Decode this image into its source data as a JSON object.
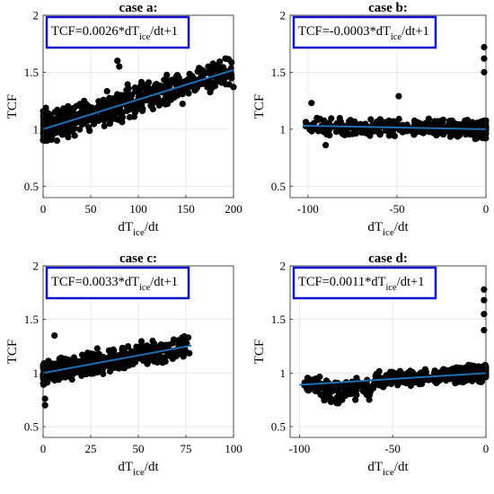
{
  "chart_data": [
    {
      "type": "scatter",
      "title": "case a:",
      "xlabel_main": "dT",
      "xlabel_sub": "ice",
      "xlabel_tail": "/dt",
      "ylabel": "TCF",
      "xlim": [
        0,
        200
      ],
      "ylim": [
        0.4,
        2.0
      ],
      "xticks": [
        "0",
        "50",
        "100",
        "150",
        "200"
      ],
      "yticks": [
        "0.5",
        "1",
        "1.5",
        "2"
      ],
      "grid": true,
      "fit_label": {
        "pre": "TCF=0.0026*dT",
        "sub": "ice",
        "post": "/dt+1"
      },
      "fit": {
        "x": [
          0,
          200
        ],
        "y": [
          1.0,
          1.52
        ]
      },
      "marker_color": "#000000",
      "fit_color": "#1f6fb5",
      "box_color": "#1010d0",
      "scatter_spec": {
        "x0": 0,
        "x1": 198,
        "dens": 1.6,
        "spread": 0.09,
        "lo": 0.9,
        "hi": 1.62,
        "seed": 11,
        "n": 620
      }
    },
    {
      "type": "scatter",
      "title": "case b:",
      "xlabel_main": "dT",
      "xlabel_sub": "ice",
      "xlabel_tail": "/dt",
      "ylabel": "TCF",
      "xlim": [
        -110,
        0
      ],
      "ylim": [
        0.4,
        2.0
      ],
      "xticks": [
        "-100",
        "-50",
        "0"
      ],
      "yticks": [
        "0.5",
        "1",
        "1.5",
        "2"
      ],
      "grid": true,
      "fit_label": {
        "pre": "TCF=-0.0003*dT",
        "sub": "ice",
        "post": "/dt+1"
      },
      "fit": {
        "x": [
          -103,
          0
        ],
        "y": [
          1.031,
          1.0
        ]
      },
      "marker_color": "#000000",
      "fit_color": "#1f6fb5",
      "box_color": "#1010d0",
      "scatter_spec": {
        "x0": -102,
        "x1": 0,
        "dens": 1.0,
        "spread": 0.05,
        "lo": 0.85,
        "hi": 1.75,
        "seed": 23,
        "n": 480
      }
    },
    {
      "type": "scatter",
      "title": "case c:",
      "xlabel_main": "dT",
      "xlabel_sub": "ice",
      "xlabel_tail": "/dt",
      "ylabel": "TCF",
      "xlim": [
        0,
        100
      ],
      "ylim": [
        0.4,
        2.0
      ],
      "xticks": [
        "0",
        "25",
        "50",
        "75",
        "100"
      ],
      "yticks": [
        "0.5",
        "1",
        "1.5",
        "2"
      ],
      "grid": true,
      "fit_label": {
        "pre": "TCF=0.0033*dT",
        "sub": "ice",
        "post": "/dt+1"
      },
      "fit": {
        "x": [
          0,
          78
        ],
        "y": [
          1.0,
          1.257
        ]
      },
      "marker_color": "#000000",
      "fit_color": "#1f6fb5",
      "box_color": "#1010d0",
      "scatter_spec": {
        "x0": 0,
        "x1": 77,
        "dens": 2.2,
        "spread": 0.07,
        "lo": 0.68,
        "hi": 1.36,
        "seed": 37,
        "n": 520
      }
    },
    {
      "type": "scatter",
      "title": "case d:",
      "xlabel_main": "dT",
      "xlabel_sub": "ice",
      "xlabel_tail": "/dt",
      "ylabel": "TCF",
      "xlim": [
        -105,
        0
      ],
      "ylim": [
        0.4,
        2.0
      ],
      "xticks": [
        "-100",
        "-50",
        "0"
      ],
      "yticks": [
        "0.5",
        "1",
        "1.5",
        "2"
      ],
      "grid": true,
      "fit_label": {
        "pre": "TCF=0.0011*dT",
        "sub": "ice",
        "post": "/dt+1"
      },
      "fit": {
        "x": [
          -100,
          0
        ],
        "y": [
          0.89,
          1.0
        ]
      },
      "marker_color": "#000000",
      "fit_color": "#1f6fb5",
      "box_color": "#1010d0",
      "scatter_spec": {
        "x0": -98,
        "x1": 0,
        "dens": 1.0,
        "spread": 0.05,
        "lo": 0.7,
        "hi": 1.78,
        "seed": 53,
        "n": 560
      }
    }
  ]
}
